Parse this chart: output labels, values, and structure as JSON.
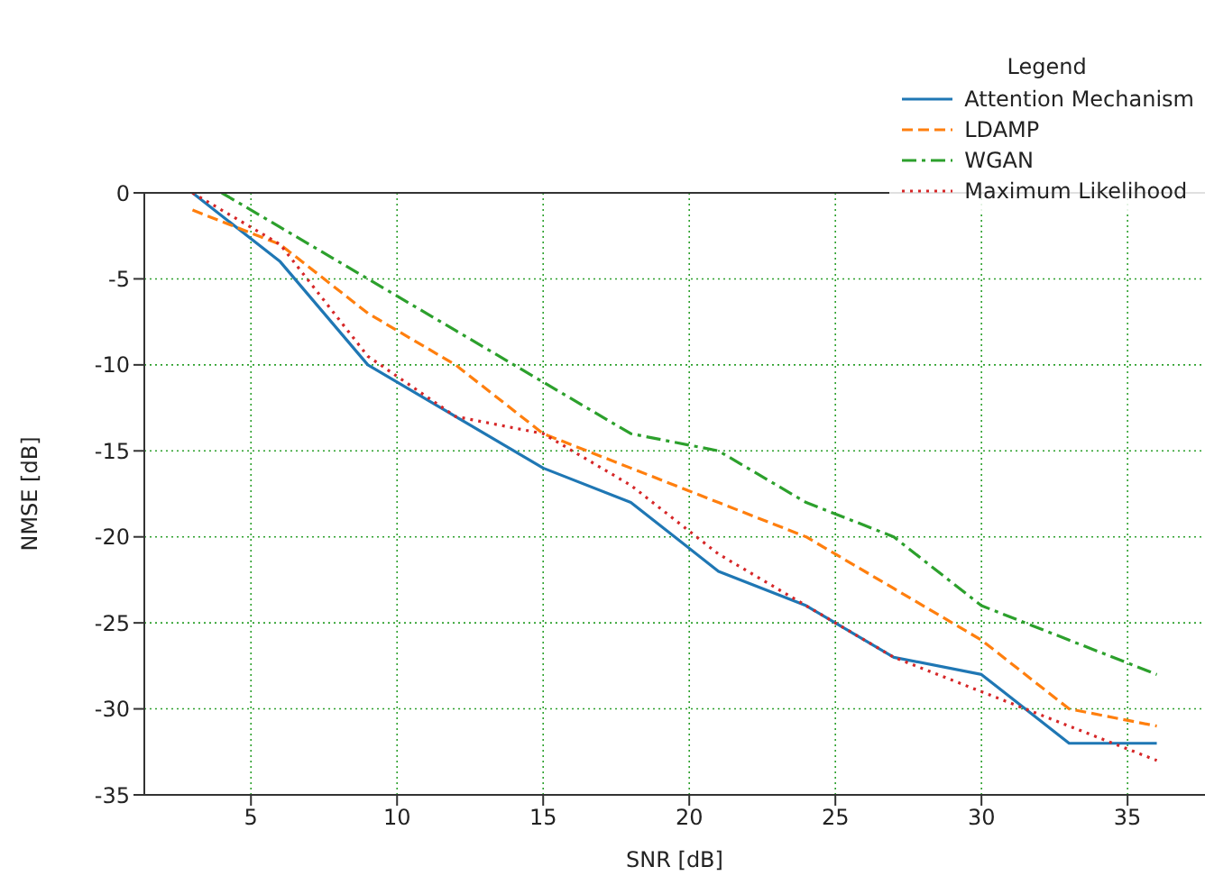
{
  "chart_data": {
    "type": "line",
    "xlabel": "SNR [dB]",
    "ylabel": "NMSE [dB]",
    "legend_title": "Legend",
    "legend": "top right",
    "grid": true,
    "marker": "none",
    "xlim": [
      1.35,
      37.65
    ],
    "xticks": [
      5,
      10,
      15,
      20,
      25,
      30,
      35
    ],
    "ylim": [
      -35,
      0
    ],
    "yticks": [
      -35,
      -30,
      -25,
      -20,
      -15,
      -10,
      -5,
      0
    ],
    "series": [
      {
        "name": "Attention Mechanism",
        "color": "#1f77b4",
        "line_style": "solid",
        "x": [
          3,
          6,
          9,
          12,
          15,
          18,
          21,
          24,
          27,
          30,
          33,
          36
        ],
        "values": [
          0,
          -4,
          -10,
          -13,
          -16,
          -18,
          -22,
          -24,
          -27,
          -28,
          -32,
          -32
        ]
      },
      {
        "name": "LDAMP",
        "color": "#ff7f0e",
        "line_style": "dashed",
        "x": [
          3,
          6,
          9,
          12,
          15,
          18,
          21,
          24,
          27,
          30,
          33,
          36
        ],
        "values": [
          -1,
          -3,
          -7,
          -10,
          -14,
          -16,
          -18,
          -20,
          -23,
          -26,
          -30,
          -31
        ]
      },
      {
        "name": "WGAN",
        "color": "#2ca02c",
        "line_style": "dashdot",
        "x": [
          4,
          6,
          9,
          12,
          15,
          18,
          21,
          24,
          27,
          30,
          33,
          36
        ],
        "values": [
          0,
          -2,
          -5,
          -8,
          -11,
          -14,
          -15,
          -18,
          -20,
          -24,
          -26,
          -28
        ]
      },
      {
        "name": "Maximum Likelihood",
        "color": "#d62728",
        "line_style": "dotted",
        "x": [
          3,
          6,
          9,
          12,
          15,
          18,
          21,
          24,
          27,
          30,
          33,
          36
        ],
        "values": [
          0,
          -3,
          -9.5,
          -13,
          -14,
          -17,
          -21,
          -24,
          -27,
          -29,
          -31,
          -33
        ]
      }
    ]
  }
}
